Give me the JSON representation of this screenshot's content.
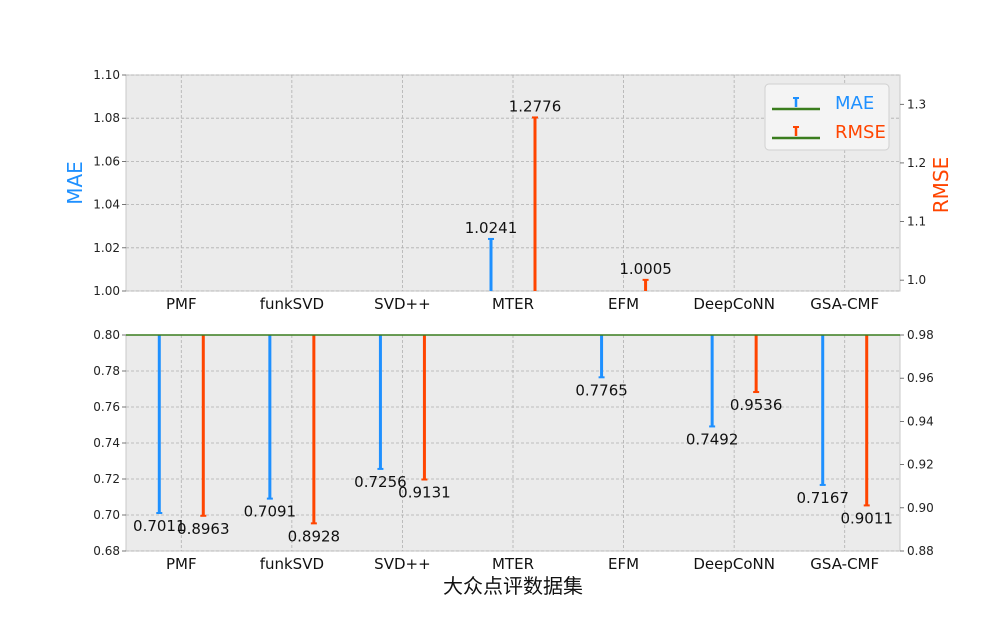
{
  "chart_data": {
    "type": "bar",
    "xlabel": "大众点评数据集",
    "categories": [
      "PMF",
      "funkSVD",
      "SVD++",
      "MTER",
      "EFM",
      "DeepCoNN",
      "GSA-CMF"
    ],
    "left_axis_label": "MAE",
    "right_axis_label": "RMSE",
    "series": [
      {
        "name": "MAE",
        "color": "#1e90ff",
        "values": [
          0.7011,
          0.7091,
          0.7256,
          1.0241,
          0.7765,
          0.7492,
          0.7167
        ],
        "labels": [
          "0.7011",
          "0.7091",
          "0.7256",
          "1.0241",
          "0.7765",
          "0.7492",
          "0.7167"
        ]
      },
      {
        "name": "RMSE",
        "color": "#ff4500",
        "values": [
          0.8963,
          0.8928,
          0.9131,
          1.2776,
          1.0005,
          0.9536,
          0.9011
        ],
        "labels": [
          "0.8963",
          "0.8928",
          "0.9131",
          "1.2776",
          "1.0005",
          "0.9536",
          "0.9011"
        ]
      }
    ],
    "top_panel": {
      "left_ylim": [
        1.0,
        1.1
      ],
      "left_ticks": [
        "1.00",
        "1.02",
        "1.04",
        "1.06",
        "1.08",
        "1.10"
      ],
      "right_ylim": [
        0.9815,
        1.35
      ],
      "right_ticks": [
        "1.0",
        "1.1",
        "1.2",
        "1.3"
      ]
    },
    "bottom_panel": {
      "left_ylim": [
        0.68,
        0.8
      ],
      "left_ticks": [
        "0.68",
        "0.70",
        "0.72",
        "0.74",
        "0.76",
        "0.78",
        "0.80"
      ],
      "right_ylim": [
        0.88,
        0.98
      ],
      "right_ticks": [
        "0.88",
        "0.90",
        "0.92",
        "0.94",
        "0.96",
        "0.98"
      ]
    },
    "legend_position": "top-right",
    "grid": true,
    "baseline_color": "#3a7d1e"
  }
}
